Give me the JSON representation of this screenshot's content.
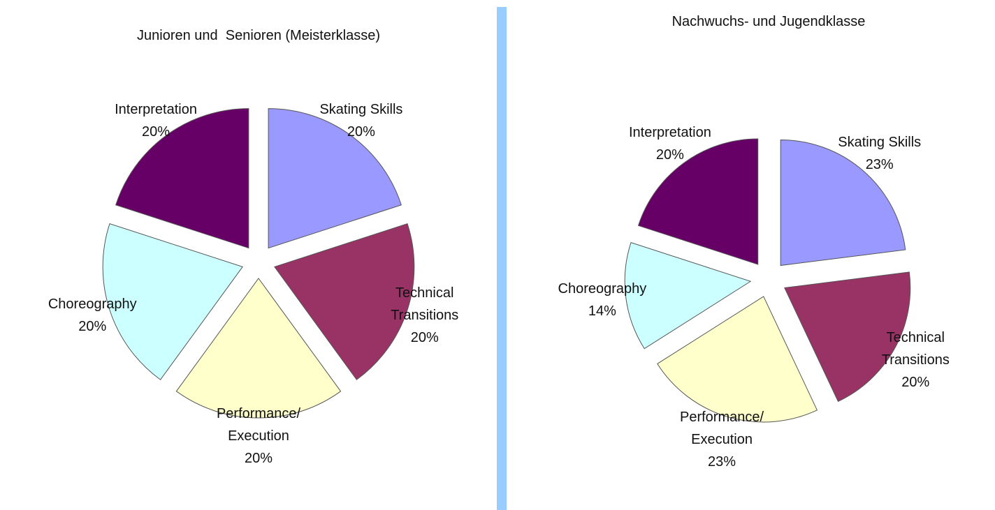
{
  "chart_data": [
    {
      "type": "pie",
      "title": "Junioren und  Senioren (Meisterklasse)",
      "categories": [
        "Skating Skills",
        "Technical Transitions",
        "Performance/ Execution",
        "Choreography",
        "Interpretation"
      ],
      "values": [
        20,
        20,
        20,
        20,
        20
      ],
      "value_labels": [
        "20%",
        "20%",
        "20%",
        "20%",
        "20%"
      ],
      "colors": [
        "#9999ff",
        "#993366",
        "#ffffcc",
        "#ccffff",
        "#660066"
      ]
    },
    {
      "type": "pie",
      "title": "Nachwuchs- und Jugendklasse",
      "categories": [
        "Skating Skills",
        "Technical Transitions",
        "Performance/ Execution",
        "Choreography",
        "Interpretation"
      ],
      "values": [
        23,
        20,
        23,
        14,
        20
      ],
      "value_labels": [
        "23%",
        "20%",
        "23%",
        "14%",
        "20%"
      ],
      "colors": [
        "#9999ff",
        "#993366",
        "#ffffcc",
        "#ccffff",
        "#660066"
      ]
    }
  ]
}
